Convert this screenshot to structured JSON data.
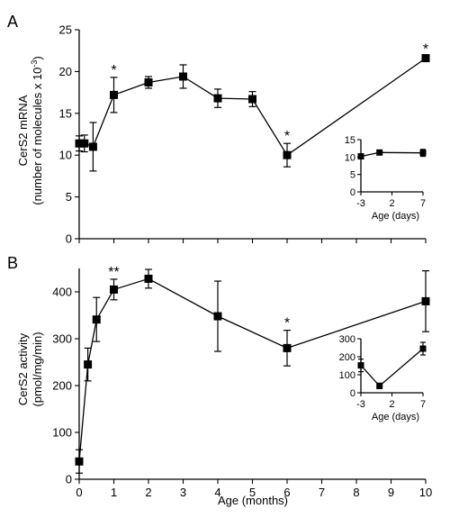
{
  "chart_data": [
    {
      "panel_label": "A",
      "type": "line",
      "ylabel_line1": "CerS2 mRNA",
      "ylabel_line2_main": "(number of molecules x 10",
      "ylabel_line2_sup": "-3",
      "ylabel_line2_end": ")",
      "ylim": [
        0,
        25
      ],
      "yticks": [
        "0",
        "5",
        "10",
        "15",
        "20",
        "25"
      ],
      "xlim": [
        0,
        10
      ],
      "points": [
        {
          "x": 0,
          "y": 11.4,
          "err": 0.9
        },
        {
          "x": 0.15,
          "y": 11.4,
          "err": 1.0
        },
        {
          "x": 0.4,
          "y": 11.0,
          "err": 2.9
        },
        {
          "x": 1,
          "y": 17.2,
          "err": 2.1,
          "sig": "*"
        },
        {
          "x": 2,
          "y": 18.7,
          "err": 0.7
        },
        {
          "x": 3,
          "y": 19.4,
          "err": 1.4
        },
        {
          "x": 4,
          "y": 16.8,
          "err": 1.1
        },
        {
          "x": 5,
          "y": 16.7,
          "err": 0.9
        },
        {
          "x": 6,
          "y": 10.0,
          "err": 1.4,
          "sig": "*"
        },
        {
          "x": 10,
          "y": 21.6,
          "err": 0.2,
          "sig": "*"
        }
      ],
      "inset": {
        "xlabel": "Age (days)",
        "xticks": [
          "-3",
          "2",
          "7"
        ],
        "xlim": [
          -3,
          7
        ],
        "yticks": [
          "0",
          "5",
          "10",
          "15"
        ],
        "ylim": [
          0,
          15
        ],
        "points": [
          {
            "x": -3,
            "y": 10.2,
            "err": 0.5
          },
          {
            "x": 0,
            "y": 11.3,
            "err": 0.5
          },
          {
            "x": 7,
            "y": 11.2,
            "err": 1.0
          }
        ]
      }
    },
    {
      "panel_label": "B",
      "type": "line",
      "ylabel_line1": "CerS2 activity",
      "ylabel_line2": "(pmol/mg/min)",
      "xlabel": "Age (months)",
      "ylim": [
        0,
        450
      ],
      "yticks": [
        "0",
        "100",
        "200",
        "300",
        "400"
      ],
      "xlim": [
        0,
        10
      ],
      "xticks": [
        "0",
        "1",
        "2",
        "3",
        "4",
        "5",
        "6",
        "7",
        "8",
        "9",
        "10"
      ],
      "points": [
        {
          "x": 0,
          "y": 38,
          "err": 25
        },
        {
          "x": 0.25,
          "y": 245,
          "err": 35
        },
        {
          "x": 0.5,
          "y": 341,
          "err": 47
        },
        {
          "x": 1,
          "y": 405,
          "err": 22,
          "sig": "**"
        },
        {
          "x": 2,
          "y": 428,
          "err": 20
        },
        {
          "x": 4,
          "y": 348,
          "err": 75
        },
        {
          "x": 6,
          "y": 280,
          "err": 38,
          "sig": "*"
        },
        {
          "x": 10,
          "y": 380,
          "err": 65
        }
      ],
      "inset": {
        "xlabel": "Age (days)",
        "xticks": [
          "-3",
          "2",
          "7"
        ],
        "xlim": [
          -3,
          7
        ],
        "yticks": [
          "0",
          "100",
          "200",
          "300"
        ],
        "ylim": [
          0,
          300
        ],
        "points": [
          {
            "x": -3,
            "y": 152,
            "err": 35
          },
          {
            "x": 0,
            "y": 38,
            "err": 15
          },
          {
            "x": 7,
            "y": 245,
            "err": 35
          }
        ]
      }
    }
  ]
}
